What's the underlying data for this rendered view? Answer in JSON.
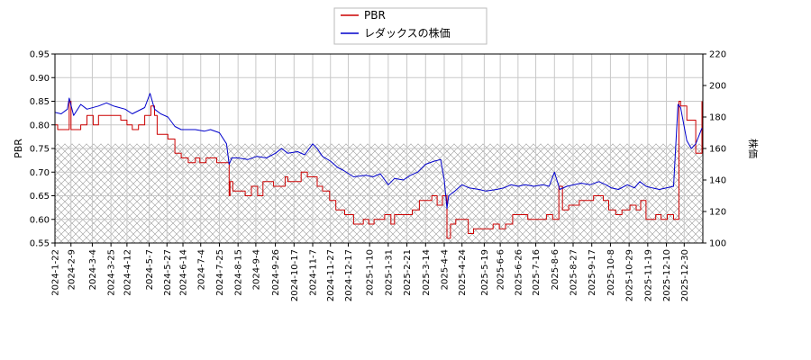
{
  "chart_data": {
    "type": "line",
    "legend": {
      "placement": "top-center",
      "entries": [
        {
          "label": "PBR",
          "color": "#cc0000"
        },
        {
          "label": "レダックスの株価",
          "color": "#0000cc"
        }
      ]
    },
    "xlabel": "",
    "ylabel_left": "PBR",
    "ylabel_right": "株価",
    "ylim_left": [
      0.55,
      0.95
    ],
    "ylim_right": [
      100,
      220
    ],
    "yticks_left": [
      "0.55",
      "0.60",
      "0.65",
      "0.70",
      "0.75",
      "0.80",
      "0.85",
      "0.90",
      "0.95"
    ],
    "yticks_right": [
      "100",
      "120",
      "140",
      "160",
      "180",
      "200",
      "220"
    ],
    "xlim": [
      "2024-01-22",
      "2026-01-20"
    ],
    "xticks": [
      "2024-1-22",
      "2024-2-9",
      "2024-3-4",
      "2024-3-25",
      "2024-4-12",
      "2024-5-7",
      "2024-5-27",
      "2024-6-14",
      "2024-7-4",
      "2024-7-25",
      "2024-8-15",
      "2024-9-4",
      "2024-9-26",
      "2024-10-17",
      "2024-11-7",
      "2024-11-27",
      "2024-12-17",
      "2025-1-10",
      "2025-1-31",
      "2025-2-21",
      "2025-3-14",
      "2025-4-4",
      "2025-4-24",
      "2025-5-19",
      "2025-6-6",
      "2025-6-26",
      "2025-7-16",
      "2025-8-6",
      "2025-8-27",
      "2025-9-17",
      "2025-10-8",
      "2025-10-29",
      "2025-11-19",
      "2025-12-10",
      "2025-12-30"
    ],
    "grid": true,
    "hatched_band": {
      "axis": "left",
      "from": 0.55,
      "to": 0.76,
      "color": "#999999"
    },
    "series": [
      {
        "name": "PBR",
        "axis": "left",
        "color": "#cc0000",
        "step": true,
        "points": [
          [
            "2024-01-22",
            0.8
          ],
          [
            "2024-01-25",
            0.79
          ],
          [
            "2024-02-05",
            0.79
          ],
          [
            "2024-02-07",
            0.85
          ],
          [
            "2024-02-09",
            0.79
          ],
          [
            "2024-02-20",
            0.8
          ],
          [
            "2024-02-27",
            0.82
          ],
          [
            "2024-03-05",
            0.8
          ],
          [
            "2024-03-11",
            0.82
          ],
          [
            "2024-03-28",
            0.82
          ],
          [
            "2024-04-05",
            0.81
          ],
          [
            "2024-04-12",
            0.8
          ],
          [
            "2024-04-18",
            0.79
          ],
          [
            "2024-04-25",
            0.8
          ],
          [
            "2024-05-02",
            0.82
          ],
          [
            "2024-05-09",
            0.84
          ],
          [
            "2024-05-13",
            0.82
          ],
          [
            "2024-05-16",
            0.78
          ],
          [
            "2024-05-28",
            0.77
          ],
          [
            "2024-06-05",
            0.74
          ],
          [
            "2024-06-12",
            0.73
          ],
          [
            "2024-06-20",
            0.72
          ],
          [
            "2024-06-28",
            0.73
          ],
          [
            "2024-07-03",
            0.72
          ],
          [
            "2024-07-10",
            0.73
          ],
          [
            "2024-07-22",
            0.72
          ],
          [
            "2024-08-05",
            0.65
          ],
          [
            "2024-08-06",
            0.68
          ],
          [
            "2024-08-09",
            0.66
          ],
          [
            "2024-08-23",
            0.65
          ],
          [
            "2024-08-30",
            0.67
          ],
          [
            "2024-09-06",
            0.65
          ],
          [
            "2024-09-12",
            0.68
          ],
          [
            "2024-09-24",
            0.67
          ],
          [
            "2024-10-07",
            0.69
          ],
          [
            "2024-10-10",
            0.68
          ],
          [
            "2024-10-25",
            0.7
          ],
          [
            "2024-11-01",
            0.69
          ],
          [
            "2024-11-12",
            0.67
          ],
          [
            "2024-11-18",
            0.66
          ],
          [
            "2024-11-26",
            0.64
          ],
          [
            "2024-12-03",
            0.62
          ],
          [
            "2024-12-13",
            0.61
          ],
          [
            "2024-12-23",
            0.59
          ],
          [
            "2025-01-03",
            0.6
          ],
          [
            "2025-01-09",
            0.59
          ],
          [
            "2025-01-15",
            0.6
          ],
          [
            "2025-01-27",
            0.61
          ],
          [
            "2025-02-03",
            0.59
          ],
          [
            "2025-02-07",
            0.61
          ],
          [
            "2025-02-27",
            0.62
          ],
          [
            "2025-03-07",
            0.64
          ],
          [
            "2025-03-21",
            0.65
          ],
          [
            "2025-03-27",
            0.63
          ],
          [
            "2025-04-02",
            0.65
          ],
          [
            "2025-04-07",
            0.56
          ],
          [
            "2025-04-11",
            0.59
          ],
          [
            "2025-04-17",
            0.6
          ],
          [
            "2025-05-01",
            0.57
          ],
          [
            "2025-05-07",
            0.58
          ],
          [
            "2025-05-29",
            0.59
          ],
          [
            "2025-06-05",
            0.58
          ],
          [
            "2025-06-12",
            0.59
          ],
          [
            "2025-06-20",
            0.61
          ],
          [
            "2025-07-07",
            0.6
          ],
          [
            "2025-07-28",
            0.61
          ],
          [
            "2025-08-04",
            0.6
          ],
          [
            "2025-08-11",
            0.67
          ],
          [
            "2025-08-15",
            0.62
          ],
          [
            "2025-08-22",
            0.63
          ],
          [
            "2025-09-03",
            0.64
          ],
          [
            "2025-09-19",
            0.65
          ],
          [
            "2025-09-30",
            0.64
          ],
          [
            "2025-10-06",
            0.62
          ],
          [
            "2025-10-14",
            0.61
          ],
          [
            "2025-10-21",
            0.62
          ],
          [
            "2025-10-30",
            0.63
          ],
          [
            "2025-11-06",
            0.62
          ],
          [
            "2025-11-11",
            0.64
          ],
          [
            "2025-11-17",
            0.6
          ],
          [
            "2025-11-28",
            0.61
          ],
          [
            "2025-12-04",
            0.6
          ],
          [
            "2025-12-11",
            0.61
          ],
          [
            "2025-12-18",
            0.6
          ],
          [
            "2025-12-24",
            0.85
          ],
          [
            "2025-12-26",
            0.84
          ],
          [
            "2026-01-02",
            0.81
          ],
          [
            "2026-01-12",
            0.74
          ],
          [
            "2026-01-19",
            0.85
          ]
        ]
      },
      {
        "name": "レダックスの株価",
        "axis": "right",
        "color": "#0000cc",
        "step": false,
        "points": [
          [
            "2024-01-22",
            183
          ],
          [
            "2024-01-29",
            182
          ],
          [
            "2024-02-05",
            185
          ],
          [
            "2024-02-07",
            192
          ],
          [
            "2024-02-12",
            181
          ],
          [
            "2024-02-20",
            188
          ],
          [
            "2024-02-27",
            185
          ],
          [
            "2024-03-11",
            187
          ],
          [
            "2024-03-20",
            189
          ],
          [
            "2024-03-28",
            187
          ],
          [
            "2024-04-10",
            185
          ],
          [
            "2024-04-18",
            182
          ],
          [
            "2024-04-25",
            184
          ],
          [
            "2024-05-02",
            186
          ],
          [
            "2024-05-08",
            195
          ],
          [
            "2024-05-13",
            185
          ],
          [
            "2024-05-20",
            182
          ],
          [
            "2024-05-28",
            180
          ],
          [
            "2024-06-05",
            174
          ],
          [
            "2024-06-12",
            172
          ],
          [
            "2024-06-20",
            172
          ],
          [
            "2024-06-28",
            172
          ],
          [
            "2024-07-08",
            171
          ],
          [
            "2024-07-15",
            172
          ],
          [
            "2024-07-25",
            170
          ],
          [
            "2024-08-02",
            163
          ],
          [
            "2024-08-05",
            150
          ],
          [
            "2024-08-08",
            154
          ],
          [
            "2024-08-15",
            154
          ],
          [
            "2024-08-26",
            153
          ],
          [
            "2024-09-05",
            155
          ],
          [
            "2024-09-16",
            154
          ],
          [
            "2024-09-26",
            157
          ],
          [
            "2024-10-03",
            160
          ],
          [
            "2024-10-10",
            157
          ],
          [
            "2024-10-21",
            158
          ],
          [
            "2024-10-29",
            156
          ],
          [
            "2024-11-07",
            163
          ],
          [
            "2024-11-12",
            160
          ],
          [
            "2024-11-18",
            155
          ],
          [
            "2024-11-27",
            152
          ],
          [
            "2024-12-05",
            148
          ],
          [
            "2024-12-12",
            146
          ],
          [
            "2024-12-23",
            142
          ],
          [
            "2025-01-06",
            143
          ],
          [
            "2025-01-14",
            142
          ],
          [
            "2025-01-22",
            144
          ],
          [
            "2025-01-31",
            137
          ],
          [
            "2025-02-07",
            141
          ],
          [
            "2025-02-17",
            140
          ],
          [
            "2025-02-25",
            143
          ],
          [
            "2025-03-05",
            145
          ],
          [
            "2025-03-14",
            150
          ],
          [
            "2025-03-24",
            152
          ],
          [
            "2025-03-31",
            153
          ],
          [
            "2025-04-04",
            140
          ],
          [
            "2025-04-07",
            122
          ],
          [
            "2025-04-09",
            130
          ],
          [
            "2025-04-16",
            133
          ],
          [
            "2025-04-24",
            137
          ],
          [
            "2025-05-02",
            135
          ],
          [
            "2025-05-13",
            134
          ],
          [
            "2025-05-21",
            133
          ],
          [
            "2025-06-02",
            134
          ],
          [
            "2025-06-10",
            135
          ],
          [
            "2025-06-18",
            137
          ],
          [
            "2025-06-26",
            136
          ],
          [
            "2025-07-04",
            137
          ],
          [
            "2025-07-14",
            136
          ],
          [
            "2025-07-24",
            137
          ],
          [
            "2025-07-31",
            136
          ],
          [
            "2025-08-06",
            145
          ],
          [
            "2025-08-12",
            134
          ],
          [
            "2025-08-20",
            136
          ],
          [
            "2025-08-28",
            137
          ],
          [
            "2025-09-05",
            138
          ],
          [
            "2025-09-15",
            137
          ],
          [
            "2025-09-25",
            139
          ],
          [
            "2025-10-03",
            137
          ],
          [
            "2025-10-09",
            135
          ],
          [
            "2025-10-17",
            134
          ],
          [
            "2025-10-27",
            137
          ],
          [
            "2025-11-04",
            135
          ],
          [
            "2025-11-10",
            139
          ],
          [
            "2025-11-17",
            136
          ],
          [
            "2025-11-24",
            135
          ],
          [
            "2025-12-02",
            134
          ],
          [
            "2025-12-10",
            135
          ],
          [
            "2025-12-18",
            136
          ],
          [
            "2025-12-23",
            188
          ],
          [
            "2025-12-26",
            186
          ],
          [
            "2026-01-02",
            165
          ],
          [
            "2026-01-07",
            160
          ],
          [
            "2026-01-12",
            163
          ],
          [
            "2026-01-19",
            173
          ]
        ]
      }
    ]
  }
}
